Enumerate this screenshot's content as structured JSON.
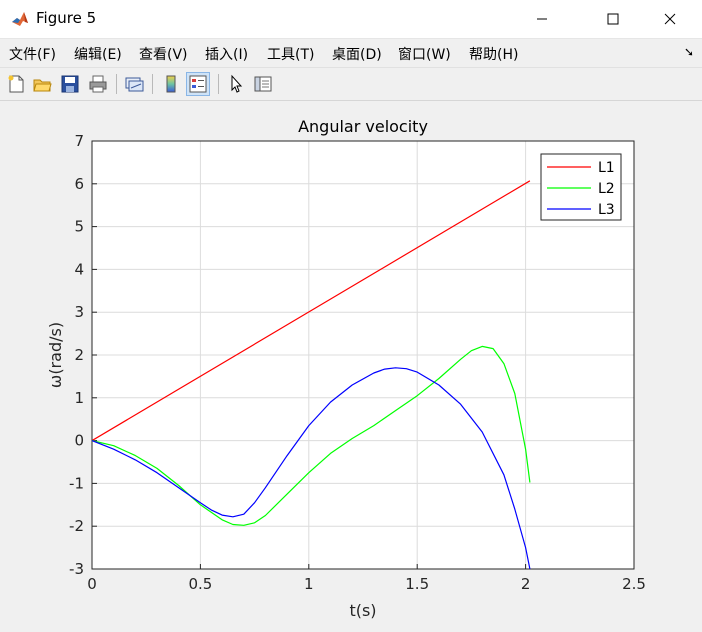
{
  "window": {
    "title": "Figure 5"
  },
  "menu": {
    "items": [
      "文件(F)",
      "编辑(E)",
      "查看(V)",
      "插入(I)",
      "工具(T)",
      "桌面(D)",
      "窗口(W)",
      "帮助(H)"
    ]
  },
  "toolbar": {
    "buttons": [
      "new-figure-icon",
      "open-file-icon",
      "save-icon",
      "print-icon",
      "link-plot-icon",
      "colorbar-icon",
      "legend-icon",
      "pointer-icon",
      "property-editor-icon"
    ]
  },
  "chart_data": {
    "type": "line",
    "title": "Angular velocity",
    "xlabel": "t(s)",
    "ylabel": "ω(rad/s)",
    "xlim": [
      0,
      2.5
    ],
    "ylim": [
      -3,
      7
    ],
    "xticks": [
      "0",
      "0.5",
      "1",
      "1.5",
      "2",
      "2.5"
    ],
    "yticks": [
      "-3",
      "-2",
      "-1",
      "0",
      "1",
      "2",
      "3",
      "4",
      "5",
      "6",
      "7"
    ],
    "grid": true,
    "legend_position": "top-right",
    "colors": {
      "L1": "#ff0000",
      "L2": "#00ff00",
      "L3": "#0000ff"
    },
    "series": [
      {
        "name": "L1",
        "x": [
          0,
          2.02
        ],
        "y": [
          0,
          6.07
        ]
      },
      {
        "name": "L2",
        "x": [
          0,
          0.1,
          0.2,
          0.3,
          0.4,
          0.5,
          0.6,
          0.65,
          0.7,
          0.75,
          0.8,
          0.9,
          1.0,
          1.1,
          1.2,
          1.3,
          1.4,
          1.5,
          1.6,
          1.7,
          1.75,
          1.8,
          1.85,
          1.9,
          1.95,
          2.0,
          2.02
        ],
        "y": [
          0,
          -0.12,
          -0.35,
          -0.65,
          -1.05,
          -1.5,
          -1.85,
          -1.96,
          -1.98,
          -1.92,
          -1.75,
          -1.25,
          -0.75,
          -0.3,
          0.05,
          0.35,
          0.7,
          1.05,
          1.45,
          1.9,
          2.1,
          2.2,
          2.15,
          1.8,
          1.1,
          -0.2,
          -0.98
        ]
      },
      {
        "name": "L3",
        "x": [
          0,
          0.1,
          0.2,
          0.3,
          0.4,
          0.5,
          0.55,
          0.6,
          0.65,
          0.7,
          0.75,
          0.8,
          0.9,
          1.0,
          1.1,
          1.2,
          1.3,
          1.35,
          1.4,
          1.45,
          1.5,
          1.6,
          1.7,
          1.8,
          1.9,
          1.95,
          2.0,
          2.02
        ],
        "y": [
          0,
          -0.2,
          -0.45,
          -0.75,
          -1.1,
          -1.45,
          -1.62,
          -1.74,
          -1.78,
          -1.72,
          -1.45,
          -1.1,
          -0.35,
          0.35,
          0.9,
          1.3,
          1.58,
          1.67,
          1.7,
          1.68,
          1.6,
          1.3,
          0.85,
          0.2,
          -0.8,
          -1.6,
          -2.5,
          -3.0
        ]
      }
    ]
  }
}
